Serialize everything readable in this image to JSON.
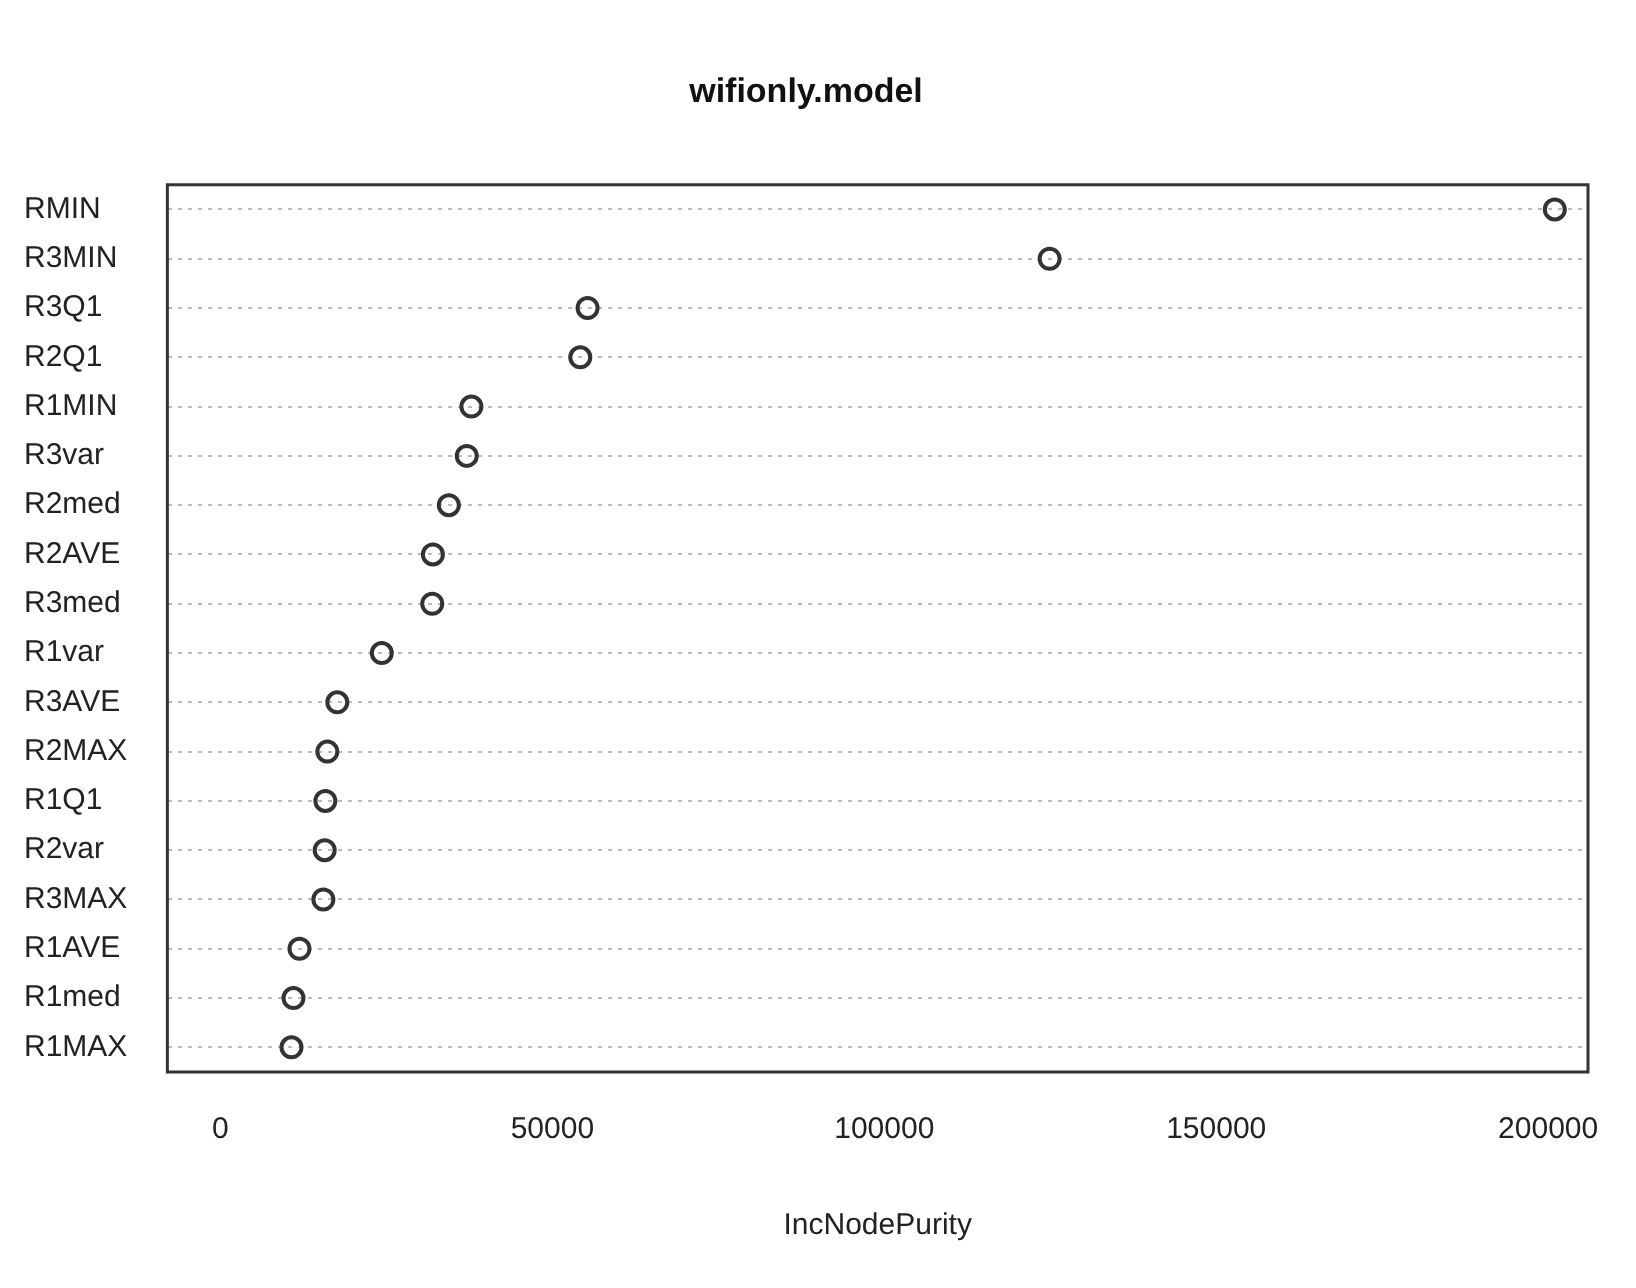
{
  "chart_data": {
    "type": "scatter",
    "orientation": "horizontal",
    "title": "wifionly.model",
    "xlabel": "IncNodePurity",
    "categories": [
      "RMIN",
      "R3MIN",
      "R3Q1",
      "R2Q1",
      "R1MIN",
      "R3var",
      "R2med",
      "R2AVE",
      "R3med",
      "R1var",
      "R3AVE",
      "R2MAX",
      "R1Q1",
      "R2var",
      "R3MAX",
      "R1AVE",
      "R1med",
      "R1MAX"
    ],
    "values": [
      201000,
      124900,
      55300,
      54200,
      37800,
      37100,
      34400,
      32000,
      31900,
      24300,
      17600,
      16100,
      15800,
      15700,
      15500,
      11900,
      11000,
      10700
    ],
    "color": "#333333",
    "marker": "circle",
    "grid": "y",
    "xlim": [
      -8000,
      206000
    ],
    "xticks": [
      0,
      50000,
      100000,
      150000,
      200000
    ]
  }
}
